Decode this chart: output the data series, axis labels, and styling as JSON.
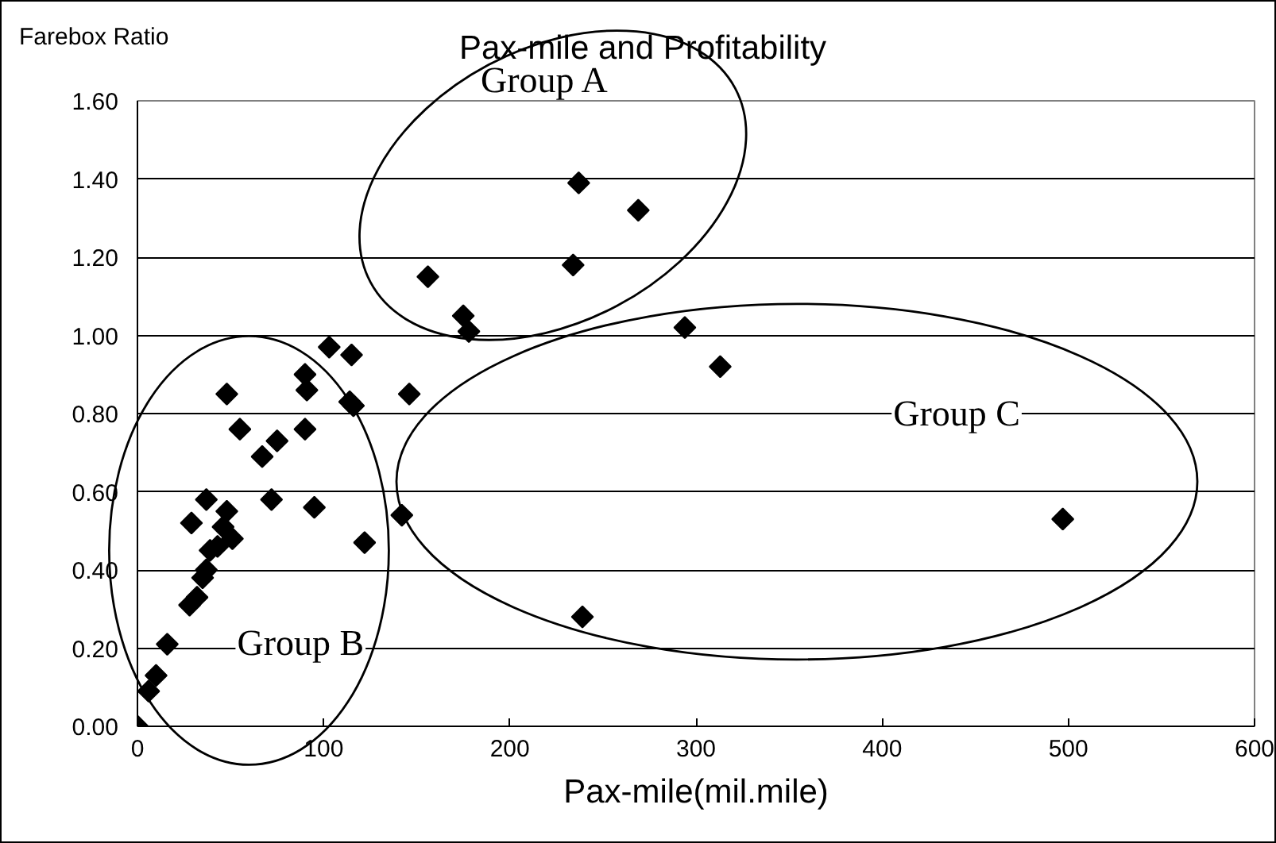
{
  "chart_data": {
    "type": "scatter",
    "title": "Pax-mile and Profitability",
    "xlabel": "Pax-mile(mil.mile)",
    "ylabel": "Farebox Ratio",
    "x": [
      0,
      6,
      10,
      16,
      28,
      32,
      35,
      37,
      39,
      43,
      46,
      48,
      51,
      29,
      37,
      48,
      55,
      67,
      75,
      72,
      90,
      90,
      91,
      95,
      103,
      115,
      114,
      116,
      122,
      142,
      146,
      156,
      175,
      178,
      234,
      237,
      269,
      294,
      313,
      239,
      497
    ],
    "values": [
      0,
      0.09,
      0.13,
      0.21,
      0.31,
      0.33,
      0.38,
      0.4,
      0.45,
      0.46,
      0.51,
      0.55,
      0.48,
      0.52,
      0.58,
      0.85,
      0.76,
      0.69,
      0.73,
      0.58,
      0.76,
      0.9,
      0.86,
      0.56,
      0.97,
      0.95,
      0.83,
      0.82,
      0.47,
      0.54,
      0.85,
      1.15,
      1.05,
      1.01,
      1.18,
      1.39,
      1.32,
      1.02,
      0.92,
      0.28,
      0.53
    ],
    "color": "#000000",
    "marker": "diamond",
    "grid": "y",
    "xlim": [
      0,
      600
    ],
    "xticks": [
      0,
      100,
      200,
      300,
      400,
      500,
      600
    ],
    "ylim": [
      0,
      1.6
    ],
    "yticks": [
      {
        "value": 0,
        "label": "0.00"
      },
      {
        "value": 0.2,
        "label": "0.20"
      },
      {
        "value": 0.4,
        "label": "0.40"
      },
      {
        "value": 0.6,
        "label": "0.60"
      },
      {
        "value": 0.8,
        "label": "0.80"
      },
      {
        "value": 1,
        "label": "1.00"
      },
      {
        "value": 1.2,
        "label": "1.20"
      },
      {
        "value": 1.4,
        "label": "1.40"
      },
      {
        "value": 1.6,
        "label": "1.60"
      }
    ],
    "annotations": [
      "Group A",
      "Group B",
      "Group C"
    ]
  }
}
